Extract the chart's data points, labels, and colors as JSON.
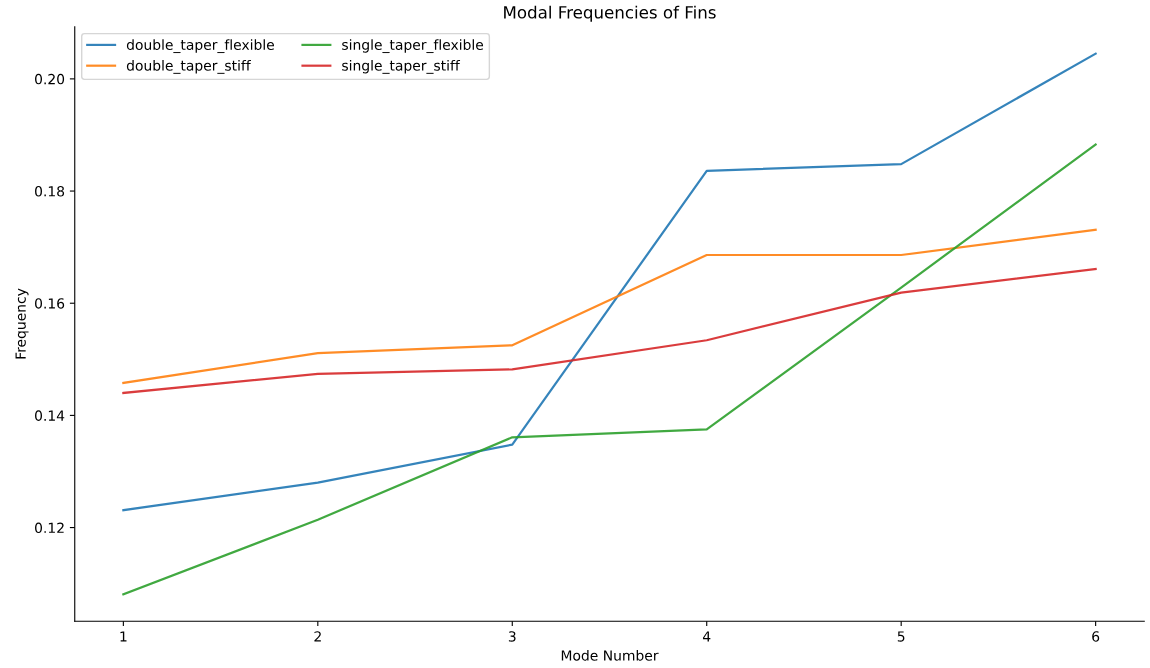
{
  "chart_data": {
    "type": "line",
    "title": "Modal Frequencies of Fins",
    "xlabel": "Mode Number",
    "ylabel": "Frequency",
    "x": [
      1,
      2,
      3,
      4,
      5,
      6
    ],
    "series": [
      {
        "name": "double_taper_flexible",
        "color": "#1f77b4",
        "values": [
          0.1231,
          0.128,
          0.1348,
          0.1836,
          0.1848,
          0.2045
        ]
      },
      {
        "name": "double_taper_stiff",
        "color": "#ff7f0e",
        "values": [
          0.1458,
          0.1511,
          0.1525,
          0.1686,
          0.1686,
          0.1731
        ]
      },
      {
        "name": "single_taper_flexible",
        "color": "#2ca02c",
        "values": [
          0.1081,
          0.1214,
          0.1361,
          0.1375,
          0.1628,
          0.1883
        ]
      },
      {
        "name": "single_taper_stiff",
        "color": "#d62728",
        "values": [
          0.144,
          0.1474,
          0.1482,
          0.1534,
          0.1619,
          0.1661
        ]
      }
    ],
    "xlim": [
      0.75,
      6.25
    ],
    "xticks": [
      1,
      2,
      3,
      4,
      5,
      6
    ],
    "ylim": [
      0.1033,
      0.2093
    ],
    "yticks": [
      {
        "value": 0.12,
        "label": "0.12"
      },
      {
        "value": 0.14,
        "label": "0.14"
      },
      {
        "value": 0.16,
        "label": "0.16"
      },
      {
        "value": 0.18,
        "label": "0.18"
      },
      {
        "value": 0.2,
        "label": "0.20"
      }
    ],
    "grid": false,
    "legend": "top left",
    "marker": "none",
    "line_style": "solid"
  }
}
